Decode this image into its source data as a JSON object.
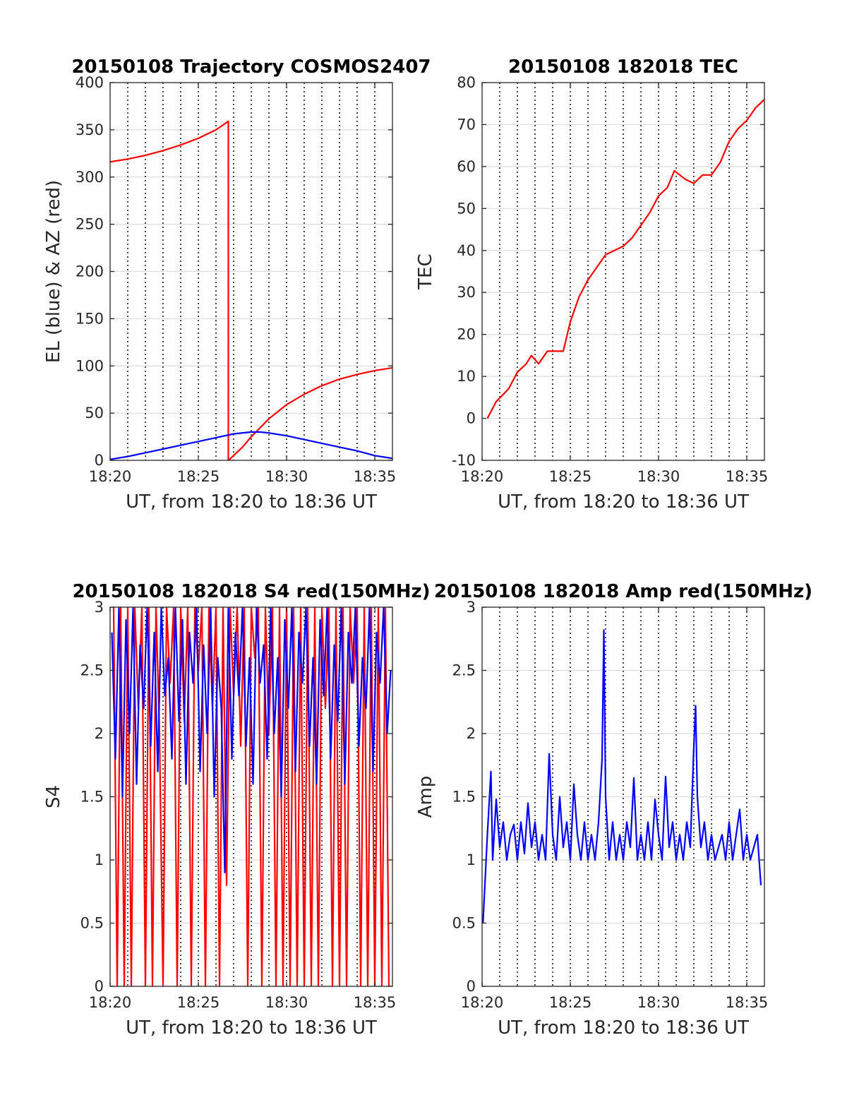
{
  "chart_data": [
    {
      "type": "line",
      "title": "20150108 Trajectory COSMOS2407",
      "xlabel": "UT, from 18:20 to 18:36 UT",
      "ylabel": "EL (blue) & AZ (red)",
      "x_unit": "minutes after 18:20 UT",
      "xlim": [
        0,
        16
      ],
      "ylim": [
        0,
        400
      ],
      "xticks": [
        0,
        5,
        10,
        15
      ],
      "xtick_labels": [
        "18:20",
        "18:25",
        "18:30",
        "18:35"
      ],
      "yticks": [
        0,
        50,
        100,
        150,
        200,
        250,
        300,
        350,
        400
      ],
      "ytick_labels": [
        "0",
        "50",
        "100",
        "150",
        "200",
        "250",
        "300",
        "350",
        "400"
      ],
      "grid": true,
      "minor_dotted_x": [
        1,
        2,
        3,
        4,
        5,
        6,
        7,
        8,
        9,
        10,
        11,
        12,
        13,
        14,
        15
      ],
      "series": [
        {
          "name": "AZ",
          "color": "#ff0000",
          "x": [
            0,
            1,
            2,
            3,
            4,
            5,
            6,
            6.7,
            6.7,
            6.71,
            7.5,
            8,
            9,
            10,
            11,
            12,
            13,
            14,
            15,
            16
          ],
          "y": [
            316,
            319,
            323,
            328,
            334,
            341,
            350,
            359,
            0,
            0,
            14,
            25,
            44,
            59,
            70,
            79,
            86,
            91,
            95,
            98
          ]
        },
        {
          "name": "EL",
          "color": "#0000ff",
          "x": [
            0,
            1,
            2,
            3,
            4,
            5,
            6,
            7,
            8,
            8.5,
            9,
            10,
            11,
            12,
            13,
            14,
            15,
            16
          ],
          "y": [
            1,
            4,
            8,
            12,
            16,
            20,
            24,
            28,
            30,
            30,
            29,
            26,
            22,
            18,
            14,
            10,
            5,
            2
          ]
        }
      ]
    },
    {
      "type": "line",
      "title": "20150108 182018 TEC",
      "xlabel": "UT, from 18:20 to 18:36 UT",
      "ylabel": "TEC",
      "x_unit": "minutes after 18:20 UT",
      "xlim": [
        0,
        16
      ],
      "ylim": [
        -10,
        80
      ],
      "xticks": [
        0,
        5,
        10,
        15
      ],
      "xtick_labels": [
        "18:20",
        "18:25",
        "18:30",
        "18:35"
      ],
      "yticks": [
        -10,
        0,
        10,
        20,
        30,
        40,
        50,
        60,
        70,
        80
      ],
      "ytick_labels": [
        "-10",
        "0",
        "10",
        "20",
        "30",
        "40",
        "50",
        "60",
        "70",
        "80"
      ],
      "grid": true,
      "minor_dotted_x": [
        1,
        2,
        3,
        4,
        5,
        6,
        7,
        8,
        9,
        10,
        11,
        12,
        13,
        14,
        15
      ],
      "series": [
        {
          "name": "TEC",
          "color": "#ff0000",
          "x": [
            0.3,
            0.8,
            1.5,
            2.0,
            2.5,
            2.8,
            3.2,
            3.7,
            4.2,
            4.6,
            5.0,
            5.5,
            6.0,
            6.5,
            7.0,
            7.5,
            8.0,
            8.5,
            9.0,
            9.5,
            10.0,
            10.5,
            10.9,
            11.5,
            12.0,
            12.5,
            13.0,
            13.5,
            14.0,
            14.5,
            15.0,
            15.5,
            16.0
          ],
          "y": [
            0,
            4,
            7,
            11,
            13,
            15,
            13,
            16,
            16,
            16,
            23,
            29,
            33,
            36,
            39,
            40,
            41,
            43,
            46,
            49,
            53,
            55,
            59,
            57,
            56,
            58,
            58,
            61,
            66,
            69,
            71,
            74,
            76
          ]
        }
      ]
    },
    {
      "type": "line",
      "title": "20150108 182018 S4 red(150MHz)",
      "xlabel": "UT, from 18:20 to 18:36 UT",
      "ylabel": "S4",
      "x_unit": "minutes after 18:20 UT",
      "xlim": [
        0,
        16
      ],
      "ylim": [
        0,
        3
      ],
      "xticks": [
        0,
        5,
        10,
        15
      ],
      "xtick_labels": [
        "18:20",
        "18:25",
        "18:30",
        "18:35"
      ],
      "yticks": [
        0,
        0.5,
        1,
        1.5,
        2,
        2.5,
        3
      ],
      "ytick_labels": [
        "0",
        "0.5",
        "1",
        "1.5",
        "2",
        "2.5",
        "3"
      ],
      "grid": true,
      "minor_dotted_x": [
        1,
        2,
        3,
        4,
        5,
        6,
        7,
        8,
        9,
        10,
        11,
        12,
        13,
        14,
        15
      ],
      "series": [
        {
          "name": "S4 red",
          "color": "#ff0000",
          "x": [
            0.2,
            0.4,
            0.6,
            0.8,
            1.0,
            1.2,
            1.4,
            1.6,
            1.8,
            2.0,
            2.2,
            2.4,
            2.6,
            2.8,
            3.0,
            3.2,
            3.4,
            3.6,
            3.8,
            4.0,
            4.2,
            4.4,
            4.6,
            4.8,
            5.0,
            5.2,
            5.4,
            5.6,
            5.8,
            6.0,
            6.2,
            6.4,
            6.6,
            6.8,
            7.0,
            7.2,
            7.4,
            7.6,
            7.8,
            8.0,
            8.2,
            8.4,
            8.6,
            8.8,
            9.0,
            9.2,
            9.4,
            9.6,
            9.8,
            10.0,
            10.2,
            10.4,
            10.6,
            10.8,
            11.0,
            11.2,
            11.4,
            11.6,
            11.8,
            12.0,
            12.2,
            12.4,
            12.6,
            12.8,
            13.0,
            13.2,
            13.4,
            13.6,
            13.8,
            14.0,
            14.2,
            14.4,
            14.6,
            14.8,
            15.0,
            15.2,
            15.4,
            15.6,
            15.8
          ],
          "y": [
            3,
            0,
            3,
            0,
            3,
            0,
            3,
            2.2,
            3,
            0,
            3,
            0,
            3,
            2.0,
            0,
            3,
            2.4,
            3,
            0,
            3,
            2.1,
            3,
            0,
            3,
            2.5,
            3,
            0,
            3,
            2.2,
            3,
            0,
            3,
            0.8,
            3,
            2.3,
            3,
            1.9,
            3,
            0,
            3,
            2.6,
            3,
            0,
            3,
            2.0,
            3,
            0,
            3,
            0,
            3,
            0,
            3,
            0,
            3,
            0,
            3,
            0,
            3,
            0,
            3,
            2.2,
            3,
            0,
            3,
            0,
            3,
            0,
            3,
            2.4,
            3,
            0,
            3,
            0,
            3,
            0,
            3,
            0,
            3,
            0
          ]
        },
        {
          "name": "S4 blue",
          "color": "#0000ff",
          "x": [
            0.1,
            0.3,
            0.5,
            0.7,
            0.9,
            1.1,
            1.3,
            1.5,
            1.7,
            1.9,
            2.1,
            2.3,
            2.5,
            2.7,
            2.9,
            3.1,
            3.3,
            3.5,
            3.7,
            3.9,
            4.1,
            4.3,
            4.5,
            4.7,
            4.9,
            5.1,
            5.3,
            5.5,
            5.7,
            5.9,
            6.1,
            6.3,
            6.5,
            6.7,
            6.9,
            7.1,
            7.3,
            7.5,
            7.7,
            7.9,
            8.1,
            8.3,
            8.5,
            8.7,
            8.9,
            9.1,
            9.3,
            9.5,
            9.7,
            9.9,
            10.1,
            10.3,
            10.5,
            10.7,
            10.9,
            11.1,
            11.3,
            11.5,
            11.7,
            11.9,
            12.1,
            12.3,
            12.5,
            12.7,
            12.9,
            13.1,
            13.3,
            13.5,
            13.7,
            13.9,
            14.1,
            14.3,
            14.5,
            14.7,
            14.9,
            15.1,
            15.3,
            15.5,
            15.7,
            15.9
          ],
          "y": [
            2.8,
            1.8,
            3.0,
            1.5,
            2.9,
            2.0,
            3.0,
            1.6,
            2.7,
            2.2,
            3.0,
            1.9,
            2.8,
            1.7,
            3.0,
            2.3,
            2.6,
            1.8,
            3.0,
            2.1,
            2.9,
            1.6,
            2.8,
            2.4,
            3.0,
            1.7,
            2.7,
            2.0,
            3.0,
            1.5,
            2.6,
            2.2,
            0.9,
            3.0,
            1.8,
            2.8,
            2.3,
            3.0,
            1.9,
            2.6,
            1.6,
            3.0,
            2.4,
            2.7,
            1.8,
            3.0,
            2.0,
            2.6,
            1.5,
            2.9,
            2.2,
            3.0,
            1.7,
            2.8,
            2.4,
            3.0,
            1.9,
            2.6,
            1.6,
            2.9,
            2.3,
            3.0,
            1.8,
            2.7,
            2.1,
            3.0,
            1.6,
            2.8,
            2.4,
            3.0,
            1.9,
            2.6,
            2.2,
            3.0,
            1.7,
            2.8,
            2.4,
            3.0,
            2.0,
            2.5
          ]
        }
      ]
    },
    {
      "type": "line",
      "title": "20150108 182018 Amp red(150MHz)",
      "xlabel": "UT, from 18:20 to 18:36 UT",
      "ylabel": "Amp",
      "x_unit": "minutes after 18:20 UT",
      "xlim": [
        0,
        16
      ],
      "ylim": [
        0,
        3
      ],
      "xticks": [
        0,
        5,
        10,
        15
      ],
      "xtick_labels": [
        "18:20",
        "18:25",
        "18:30",
        "18:35"
      ],
      "yticks": [
        0,
        0.5,
        1,
        1.5,
        2,
        2.5,
        3
      ],
      "ytick_labels": [
        "0",
        "0.5",
        "1",
        "1.5",
        "2",
        "2.5",
        "3"
      ],
      "grid": true,
      "minor_dotted_x": [
        1,
        2,
        3,
        4,
        5,
        6,
        7,
        8,
        9,
        10,
        11,
        12,
        13,
        14,
        15
      ],
      "series": [
        {
          "name": "Amp",
          "color": "#0000ff",
          "x": [
            0.05,
            0.3,
            0.5,
            0.6,
            0.8,
            1.0,
            1.2,
            1.4,
            1.6,
            1.8,
            2.0,
            2.2,
            2.4,
            2.6,
            2.8,
            3.0,
            3.2,
            3.4,
            3.6,
            3.8,
            4.0,
            4.2,
            4.4,
            4.6,
            4.8,
            5.0,
            5.2,
            5.4,
            5.6,
            5.8,
            6.0,
            6.2,
            6.4,
            6.6,
            6.8,
            6.9,
            7.0,
            7.2,
            7.4,
            7.6,
            7.8,
            8.0,
            8.2,
            8.4,
            8.6,
            8.8,
            9.0,
            9.2,
            9.4,
            9.6,
            9.8,
            10.0,
            10.2,
            10.4,
            10.6,
            10.8,
            11.0,
            11.2,
            11.4,
            11.6,
            11.8,
            12.0,
            12.1,
            12.2,
            12.4,
            12.6,
            12.8,
            13.0,
            13.2,
            13.4,
            13.6,
            13.8,
            14.0,
            14.2,
            14.4,
            14.6,
            14.8,
            15.0,
            15.2,
            15.4,
            15.6,
            15.8
          ],
          "y": [
            0.5,
            1.2,
            1.7,
            1.0,
            1.48,
            1.1,
            1.3,
            1.0,
            1.2,
            1.28,
            1.0,
            1.3,
            1.05,
            1.45,
            1.1,
            1.3,
            1.0,
            1.2,
            1.0,
            1.84,
            1.2,
            1.0,
            1.5,
            1.1,
            1.3,
            1.0,
            1.6,
            1.2,
            1.0,
            1.3,
            1.0,
            1.2,
            1.0,
            1.3,
            1.8,
            2.82,
            1.5,
            1.0,
            1.3,
            1.0,
            1.2,
            1.0,
            1.3,
            1.1,
            1.65,
            1.0,
            1.2,
            1.0,
            1.3,
            1.0,
            1.48,
            1.2,
            1.0,
            1.66,
            1.1,
            1.3,
            1.0,
            1.2,
            1.0,
            1.3,
            1.1,
            1.9,
            2.22,
            1.5,
            1.1,
            1.3,
            1.0,
            1.2,
            1.0,
            1.1,
            1.2,
            1.0,
            1.3,
            1.0,
            1.2,
            1.4,
            1.0,
            1.2,
            1.0,
            1.1,
            1.2,
            0.8
          ]
        }
      ]
    }
  ]
}
